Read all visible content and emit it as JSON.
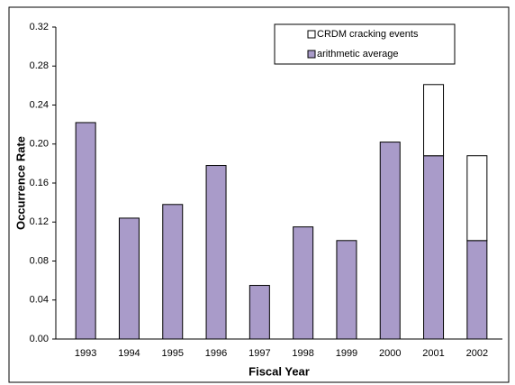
{
  "chart_data": {
    "type": "stacked-bar",
    "x_label": "Fiscal Year",
    "y_label": "Occurrence Rate",
    "categories": [
      "1993",
      "1994",
      "1995",
      "1996",
      "1997",
      "1998",
      "1999",
      "2000",
      "2001",
      "2002"
    ],
    "series": [
      {
        "name": "arithmetic average",
        "color": "#a99bc9",
        "values": [
          0.222,
          0.124,
          0.138,
          0.178,
          0.055,
          0.115,
          0.101,
          0.202,
          0.188,
          0.101
        ]
      },
      {
        "name": "CRDM cracking events",
        "color": "#ffffff",
        "values": [
          null,
          null,
          null,
          null,
          null,
          null,
          null,
          null,
          0.073,
          0.087
        ]
      }
    ],
    "ylim": [
      0,
      0.32
    ],
    "yticks": [
      {
        "value": 0,
        "label": "0.00"
      },
      {
        "value": 0.04,
        "label": "0.04"
      },
      {
        "value": 0.08,
        "label": "0.08"
      },
      {
        "value": 0.12,
        "label": "0.12"
      },
      {
        "value": 0.16,
        "label": "0.16"
      },
      {
        "value": 0.2,
        "label": "0.20"
      },
      {
        "value": 0.24,
        "label": "0.24"
      },
      {
        "value": 0.28,
        "label": "0.28"
      },
      {
        "value": 0.32,
        "label": "0.32"
      }
    ],
    "grid": false,
    "legend": "top-right"
  }
}
